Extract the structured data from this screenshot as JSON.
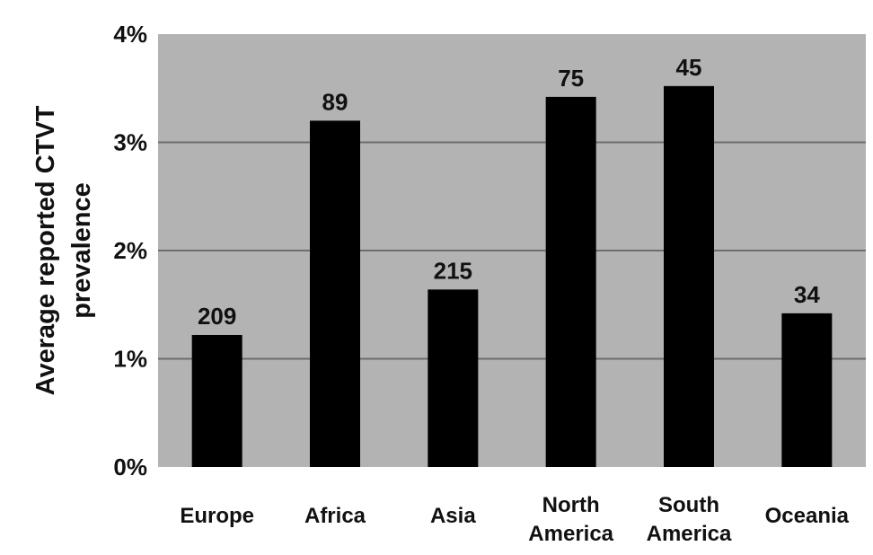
{
  "chart_data": {
    "type": "bar",
    "categories": [
      [
        "Europe"
      ],
      [
        "Africa"
      ],
      [
        "Asia"
      ],
      [
        "North",
        "America"
      ],
      [
        "South",
        "America"
      ],
      [
        "Oceania"
      ]
    ],
    "values": [
      0.0122,
      0.032,
      0.0164,
      0.0342,
      0.0352,
      0.0142
    ],
    "data_labels": [
      "209",
      "89",
      "215",
      "75",
      "45",
      "34"
    ],
    "ylabel_lines": [
      "Average reported CTVT",
      "prevalence"
    ],
    "yticks": [
      0,
      0.01,
      0.02,
      0.03,
      0.04
    ],
    "ytick_labels": [
      "0%",
      "1%",
      "2%",
      "3%",
      "4%"
    ],
    "ylim": [
      0,
      0.04
    ],
    "grid": true,
    "legend": "none",
    "colors": {
      "plot_background": "#b3b3b3",
      "bar": "#000000",
      "gridline": "#6e6e6e",
      "text": "#111111"
    }
  }
}
